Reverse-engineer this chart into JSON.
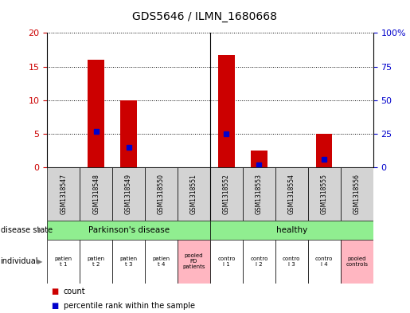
{
  "title": "GDS5646 / ILMN_1680668",
  "samples": [
    "GSM1318547",
    "GSM1318548",
    "GSM1318549",
    "GSM1318550",
    "GSM1318551",
    "GSM1318552",
    "GSM1318553",
    "GSM1318554",
    "GSM1318555",
    "GSM1318556"
  ],
  "count_values": [
    0,
    16,
    10,
    0,
    0,
    16.7,
    2.5,
    0,
    5,
    0
  ],
  "percentile_values": [
    null,
    27,
    15,
    null,
    null,
    25,
    2,
    null,
    6,
    null
  ],
  "ylim_left": [
    0,
    20
  ],
  "ylim_right": [
    0,
    100
  ],
  "yticks_left": [
    0,
    5,
    10,
    15,
    20
  ],
  "yticks_right": [
    0,
    25,
    50,
    75,
    100
  ],
  "ytick_labels_left": [
    "0",
    "5",
    "10",
    "15",
    "20"
  ],
  "ytick_labels_right": [
    "0",
    "25",
    "50",
    "75",
    "100%"
  ],
  "individual_labels": [
    "patien\nt 1",
    "patien\nt 2",
    "patien\nt 3",
    "patien\nt 4",
    "pooled\nPD\npatients",
    "contro\nl 1",
    "contro\nl 2",
    "contro\nl 3",
    "contro\nl 4",
    "pooled\ncontrols"
  ],
  "individual_colors": [
    "#ffffff",
    "#ffffff",
    "#ffffff",
    "#ffffff",
    "#FFB6C1",
    "#ffffff",
    "#ffffff",
    "#ffffff",
    "#ffffff",
    "#FFB6C1"
  ],
  "count_color": "#CC0000",
  "percentile_color": "#0000CC",
  "bar_width": 0.5,
  "bg_color": "#ffffff",
  "gsm_label_color": "#d3d3d3"
}
